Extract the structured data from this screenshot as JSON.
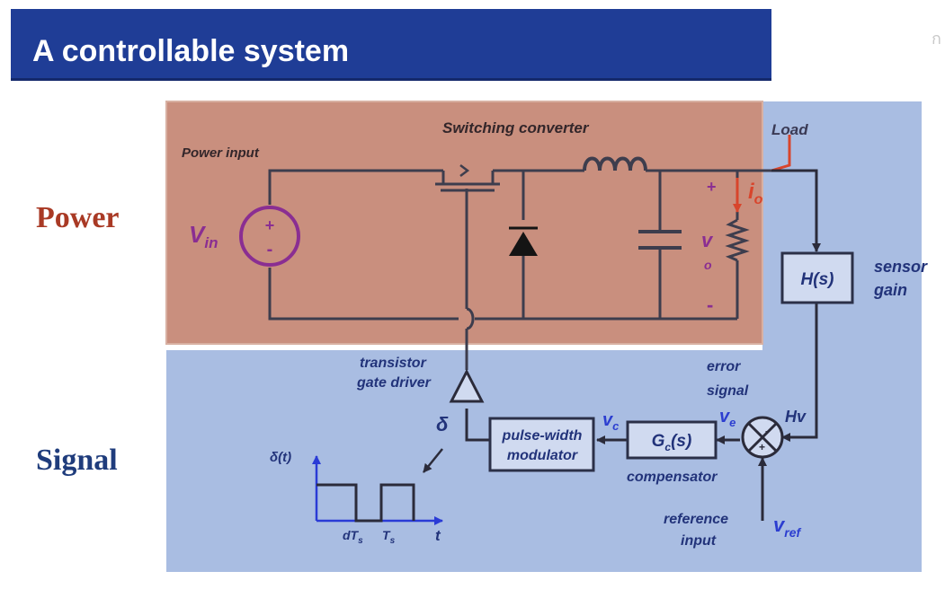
{
  "title": "A controllable system",
  "corner_mark": "ก",
  "side_labels": {
    "power": "Power",
    "signal": "Signal"
  },
  "labels": {
    "power_input": "Power input",
    "switching_converter": "Switching converter",
    "load": "Load",
    "vin_main": "V",
    "vin_sub": "in",
    "plus": "+",
    "minus": "-",
    "vo_main": "v",
    "vo_sub": "o",
    "io_main": "i",
    "io_sub": "o",
    "sensor_block": "H(s)",
    "sensor_gain_1": "sensor",
    "sensor_gain_2": "gain",
    "transistor_1": "transistor",
    "transistor_2": "gate driver",
    "error_1": "error",
    "error_2": "signal",
    "delta": "δ",
    "vc_main": "v",
    "vc_sub": "c",
    "ve_main": "v",
    "ve_sub": "e",
    "hv": "Hv",
    "pwm_1": "pulse-width",
    "pwm_2": "modulator",
    "gc_main": "G",
    "gc_sub": "c",
    "gc_rest": "(s)",
    "compensator": "compensator",
    "reference_1": "reference",
    "reference_2": "input",
    "vref_main": "v",
    "vref_sub": "ref",
    "delta_t": "δ(t)",
    "dts_main": "dT",
    "dts_sub": "s",
    "ts_main": "T",
    "ts_sub": "s",
    "t_axis": "t",
    "sum_plus": "+",
    "sum_minus": "-"
  },
  "colors": {
    "title_bg": "#1f3d96",
    "power_bg": "#c98f7e",
    "signal_bg": "#a9bde2",
    "wire": "#3d3d4d",
    "source_purple": "#8a2e92",
    "io_red": "#d8452c",
    "signal_text": "#22337a",
    "blue_label": "#2c3ed0",
    "power_label": "#a93a25"
  }
}
